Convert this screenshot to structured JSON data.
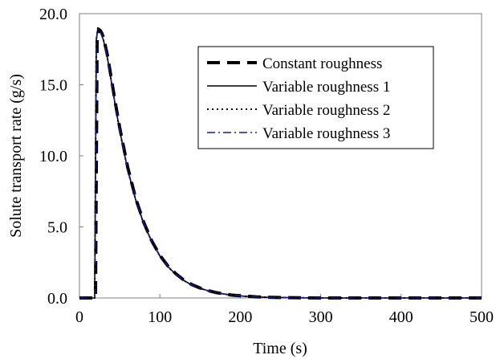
{
  "chart_data": {
    "type": "line",
    "title": "",
    "xlabel": "Time (s)",
    "ylabel": "Solute transport rate (g/s)",
    "xlim": [
      0,
      500
    ],
    "ylim": [
      0,
      20
    ],
    "x_ticks": [
      0,
      100,
      200,
      300,
      400,
      500
    ],
    "y_ticks": [
      0,
      5,
      10,
      15,
      20
    ],
    "x_tick_labels": [
      "0",
      "100",
      "200",
      "300",
      "400",
      "500"
    ],
    "y_tick_labels": [
      "0.0",
      "5.0",
      "10.0",
      "15.0",
      "20.0"
    ],
    "grid": false,
    "legend_position": "top-right",
    "series": [
      {
        "name": "Constant roughness",
        "style": "long-dash",
        "color": "#000000",
        "x": [
          0,
          20,
          22,
          24,
          26,
          28,
          30,
          35,
          40,
          45,
          50,
          60,
          70,
          80,
          90,
          100,
          110,
          120,
          130,
          140,
          150,
          160,
          170,
          180,
          190,
          200,
          220,
          240,
          260,
          280,
          300,
          350,
          400,
          450,
          500
        ],
        "y": [
          0,
          0,
          18.0,
          18.9,
          18.8,
          18.6,
          18.3,
          17.0,
          15.3,
          13.6,
          12.0,
          9.2,
          7.0,
          5.3,
          4.0,
          3.0,
          2.25,
          1.7,
          1.25,
          0.93,
          0.7,
          0.52,
          0.38,
          0.28,
          0.2,
          0.15,
          0.08,
          0.04,
          0.02,
          0.01,
          0.0,
          0.0,
          0.0,
          0.0,
          0.0
        ]
      },
      {
        "name": "Variable roughness 1",
        "style": "solid",
        "color": "#000000",
        "x": [
          0,
          19,
          21,
          23,
          25,
          27,
          30,
          35,
          40,
          45,
          50,
          60,
          70,
          80,
          90,
          100,
          110,
          120,
          130,
          140,
          150,
          160,
          170,
          180,
          190,
          200,
          220,
          240,
          260,
          280,
          300,
          350,
          400,
          450,
          500
        ],
        "y": [
          0,
          0,
          18.2,
          19.0,
          18.9,
          18.6,
          18.1,
          16.8,
          15.1,
          13.4,
          11.8,
          9.0,
          6.9,
          5.2,
          3.95,
          2.95,
          2.2,
          1.65,
          1.22,
          0.9,
          0.68,
          0.5,
          0.37,
          0.27,
          0.2,
          0.14,
          0.07,
          0.04,
          0.02,
          0.01,
          0.0,
          0.0,
          0.0,
          0.0,
          0.0
        ]
      },
      {
        "name": "Variable roughness 2",
        "style": "dotted",
        "color": "#000000",
        "x": [
          0,
          19,
          21,
          23,
          25,
          27,
          30,
          35,
          40,
          45,
          50,
          60,
          70,
          80,
          90,
          100,
          110,
          120,
          130,
          140,
          150,
          160,
          170,
          180,
          190,
          200,
          220,
          240,
          260,
          280,
          300,
          350,
          400,
          450,
          500
        ],
        "y": [
          0,
          0,
          18.2,
          19.0,
          18.9,
          18.6,
          18.1,
          16.8,
          15.1,
          13.4,
          11.8,
          9.0,
          6.9,
          5.2,
          3.95,
          2.95,
          2.2,
          1.65,
          1.22,
          0.9,
          0.68,
          0.5,
          0.37,
          0.27,
          0.2,
          0.14,
          0.07,
          0.04,
          0.02,
          0.01,
          0.0,
          0.0,
          0.0,
          0.0,
          0.0
        ]
      },
      {
        "name": "Variable roughness 3",
        "style": "dash-dot",
        "color": "#1a1a8c",
        "x": [
          0,
          19,
          21,
          23,
          25,
          27,
          30,
          35,
          40,
          45,
          50,
          60,
          70,
          80,
          90,
          100,
          110,
          120,
          130,
          140,
          150,
          160,
          170,
          180,
          190,
          200,
          220,
          240,
          260,
          280,
          300,
          350,
          400,
          450,
          500
        ],
        "y": [
          0,
          0,
          18.1,
          18.95,
          18.85,
          18.55,
          18.1,
          16.8,
          15.1,
          13.4,
          11.85,
          9.05,
          6.95,
          5.25,
          3.98,
          2.98,
          2.22,
          1.66,
          1.23,
          0.91,
          0.69,
          0.51,
          0.38,
          0.28,
          0.2,
          0.15,
          0.08,
          0.04,
          0.02,
          0.01,
          0.0,
          0.0,
          0.0,
          0.0,
          0.0
        ]
      }
    ]
  }
}
